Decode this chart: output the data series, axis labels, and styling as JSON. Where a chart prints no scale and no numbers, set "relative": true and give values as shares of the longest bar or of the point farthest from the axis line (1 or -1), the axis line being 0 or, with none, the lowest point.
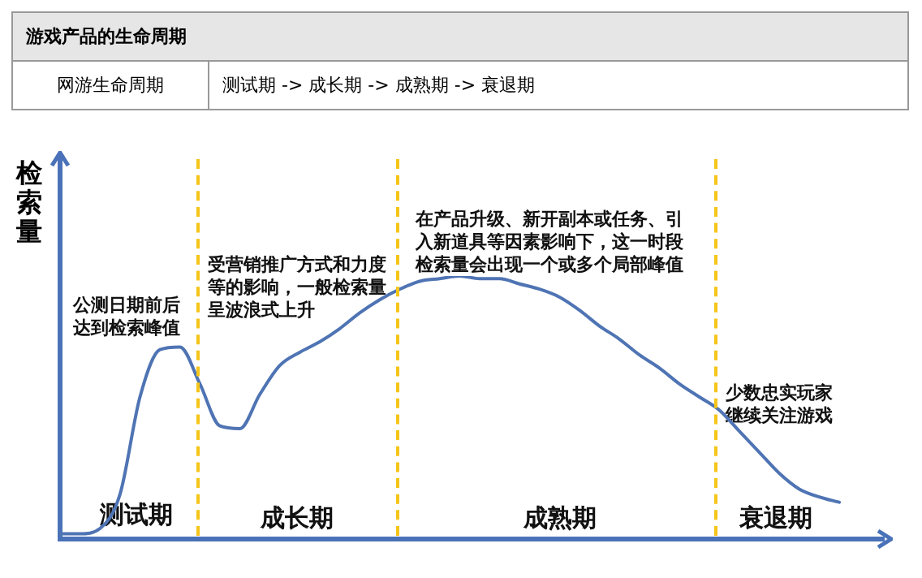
{
  "chart_data": {
    "type": "line",
    "title": "游戏产品的生命周期",
    "subtitle": "网游生命周期",
    "ylabel": "检索量",
    "relative": true,
    "legend": false,
    "marker": "none",
    "line_style": "solid",
    "categories": [
      null,
      null,
      null,
      null,
      null,
      null,
      null,
      null,
      null,
      null,
      null,
      null,
      null,
      null,
      null,
      null,
      null,
      null,
      null,
      null,
      null,
      null,
      null,
      null,
      null,
      null,
      null,
      null,
      null,
      null,
      null,
      null,
      null,
      null,
      null,
      null,
      null,
      null,
      null,
      null
    ],
    "series": [
      {
        "color": "#4f74b4",
        "values": [
          0.02,
          0.02,
          0.04,
          0.17,
          0.54,
          0.72,
          0.73,
          0.59,
          0.43,
          0.42,
          0.55,
          0.66,
          0.71,
          0.75,
          0.8,
          0.86,
          0.91,
          0.95,
          0.98,
          0.99,
          1,
          0.99,
          0.99,
          0.97,
          0.95,
          0.92,
          0.87,
          0.81,
          0.76,
          0.7,
          0.65,
          0.59,
          0.54,
          0.49,
          0.41,
          0.33,
          0.25,
          0.19,
          0.16,
          0.14
        ]
      }
    ],
    "annotations": [
      "测试期 -> 成长期 -> 成熟期 -> 衰退期",
      "公测日期前后达到检索峰值",
      "受营销推广方式和力度等的影响，一般检索量呈波浪式上升",
      "在产品升级、新开副本或任务、引入新道具等因素影响下，这一时段检索量会出现一个或多个局部峰值",
      "少数忠实玩家继续关注游戏",
      "测试期",
      "成长期",
      "成熟期",
      "衰退期"
    ]
  }
}
